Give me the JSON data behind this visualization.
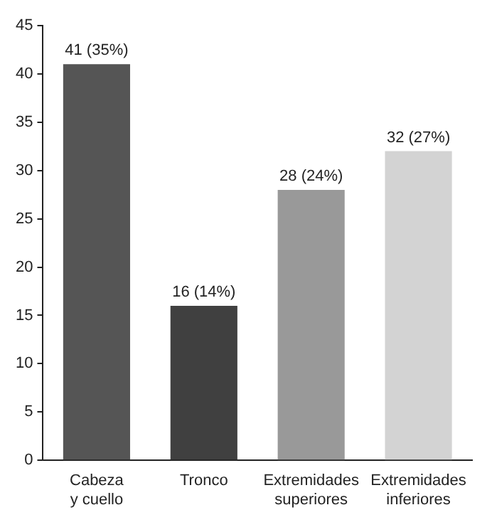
{
  "chart_data": {
    "type": "bar",
    "categories": [
      "Cabeza y cuello",
      "Tronco",
      "Extremidades superiores",
      "Extremidades inferiores"
    ],
    "values": [
      41,
      16,
      28,
      32
    ],
    "colors": [
      "#555555",
      "#404040",
      "#999999",
      "#d3d3d3"
    ],
    "value_labels": [
      "41 (35%)",
      "16 (14%)",
      "28 (24%)",
      "32 (27%)"
    ],
    "ylim": [
      0,
      45
    ],
    "yticks": [
      0,
      5,
      10,
      15,
      20,
      25,
      30,
      35,
      40,
      45
    ],
    "grid": false,
    "legend": false
  }
}
